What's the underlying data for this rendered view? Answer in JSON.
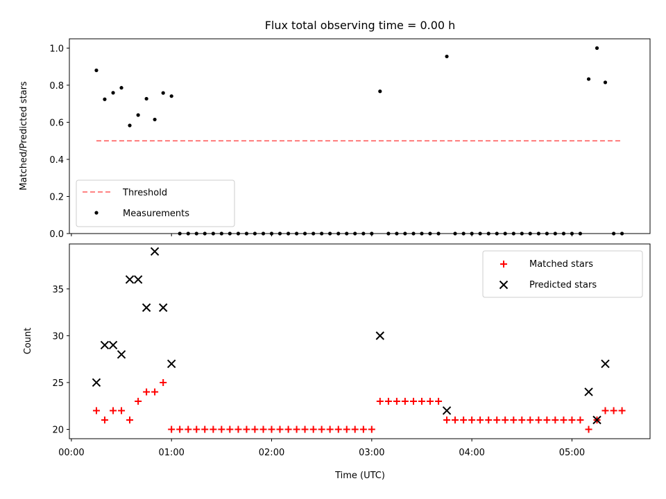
{
  "figure": {
    "title": "Flux total observing time = 0.00 h",
    "xlabel": "Time (UTC)",
    "x_ticks": [
      "00:00",
      "01:00",
      "02:00",
      "03:00",
      "04:00",
      "05:00"
    ]
  },
  "colors": {
    "measurement": "#000000",
    "threshold": "#ff7070",
    "matched": "#ff0000",
    "predicted": "#000000"
  },
  "chart_data": [
    {
      "type": "scatter",
      "x_unit": "hours since 00:00 UTC",
      "xlim": [
        -0.02,
        5.78
      ],
      "ylabel": "Matched/Predicted stars",
      "ylim": [
        0.0,
        1.05
      ],
      "y_ticks": [
        "0.0",
        "0.2",
        "0.4",
        "0.6",
        "0.8",
        "1.0"
      ],
      "legend": {
        "position": "lower-left",
        "entries": [
          "Threshold",
          "Measurements"
        ]
      },
      "series": [
        {
          "name": "Threshold",
          "type": "line",
          "style": "dashed",
          "color": "#ff7070",
          "x": [
            0.25,
            5.5
          ],
          "y": [
            0.5,
            0.5
          ]
        },
        {
          "name": "Measurements",
          "type": "scatter",
          "color": "#000000",
          "x": [
            0.25,
            0.333,
            0.417,
            0.5,
            0.583,
            0.667,
            0.75,
            0.833,
            0.917,
            1.0,
            1.083,
            1.167,
            1.25,
            1.333,
            1.417,
            1.5,
            1.583,
            1.667,
            1.75,
            1.833,
            1.917,
            2.0,
            2.083,
            2.167,
            2.25,
            2.333,
            2.417,
            2.5,
            2.583,
            2.667,
            2.75,
            2.833,
            2.917,
            3.0,
            3.083,
            3.167,
            3.25,
            3.333,
            3.417,
            3.5,
            3.583,
            3.667,
            3.75,
            3.833,
            3.917,
            4.0,
            4.083,
            4.167,
            4.25,
            4.333,
            4.417,
            4.5,
            4.583,
            4.667,
            4.75,
            4.833,
            4.917,
            5.0,
            5.083,
            5.167,
            5.25,
            5.333,
            5.417,
            5.5
          ],
          "y": [
            0.88,
            0.724,
            0.759,
            0.786,
            0.583,
            0.639,
            0.727,
            0.615,
            0.758,
            0.741,
            0,
            0,
            0,
            0,
            0,
            0,
            0,
            0,
            0,
            0,
            0,
            0,
            0,
            0,
            0,
            0,
            0,
            0,
            0,
            0,
            0,
            0,
            0,
            0,
            0.767,
            0,
            0,
            0,
            0,
            0,
            0,
            0,
            0.955,
            0,
            0,
            0,
            0,
            0,
            0,
            0,
            0,
            0,
            0,
            0,
            0,
            0,
            0,
            0,
            0,
            0.833,
            1.0,
            0.815,
            0,
            0
          ]
        }
      ]
    },
    {
      "type": "scatter",
      "x_unit": "hours since 00:00 UTC",
      "xlim": [
        -0.02,
        5.78
      ],
      "xlabel": "Time (UTC)",
      "ylabel": "Count",
      "ylim": [
        19.0,
        39.8
      ],
      "y_ticks": [
        "20",
        "25",
        "30",
        "35"
      ],
      "legend": {
        "position": "upper-right",
        "entries": [
          "Matched stars",
          "Predicted stars"
        ]
      },
      "series": [
        {
          "name": "Matched stars",
          "marker": "plus",
          "color": "#ff0000",
          "x": [
            0.25,
            0.333,
            0.417,
            0.5,
            0.583,
            0.667,
            0.75,
            0.833,
            0.917,
            1.0,
            1.083,
            1.167,
            1.25,
            1.333,
            1.417,
            1.5,
            1.583,
            1.667,
            1.75,
            1.833,
            1.917,
            2.0,
            2.083,
            2.167,
            2.25,
            2.333,
            2.417,
            2.5,
            2.583,
            2.667,
            2.75,
            2.833,
            2.917,
            3.0,
            3.083,
            3.167,
            3.25,
            3.333,
            3.417,
            3.5,
            3.583,
            3.667,
            3.75,
            3.833,
            3.917,
            4.0,
            4.083,
            4.167,
            4.25,
            4.333,
            4.417,
            4.5,
            4.583,
            4.667,
            4.75,
            4.833,
            4.917,
            5.0,
            5.083,
            5.167,
            5.25,
            5.333,
            5.417,
            5.5
          ],
          "y": [
            22,
            21,
            22,
            22,
            21,
            23,
            24,
            24,
            25,
            20,
            20,
            20,
            20,
            20,
            20,
            20,
            20,
            20,
            20,
            20,
            20,
            20,
            20,
            20,
            20,
            20,
            20,
            20,
            20,
            20,
            20,
            20,
            20,
            20,
            23,
            23,
            23,
            23,
            23,
            23,
            23,
            23,
            21,
            21,
            21,
            21,
            21,
            21,
            21,
            21,
            21,
            21,
            21,
            21,
            21,
            21,
            21,
            21,
            21,
            20,
            21,
            22,
            22,
            22
          ]
        },
        {
          "name": "Predicted stars",
          "marker": "x",
          "color": "#000000",
          "x": [
            0.25,
            0.333,
            0.417,
            0.5,
            0.583,
            0.667,
            0.75,
            0.833,
            0.917,
            1.0,
            3.083,
            3.75,
            5.167,
            5.25,
            5.333
          ],
          "y": [
            25,
            29,
            29,
            28,
            36,
            36,
            33,
            39,
            33,
            27,
            30,
            22,
            24,
            21,
            27
          ]
        }
      ]
    }
  ]
}
